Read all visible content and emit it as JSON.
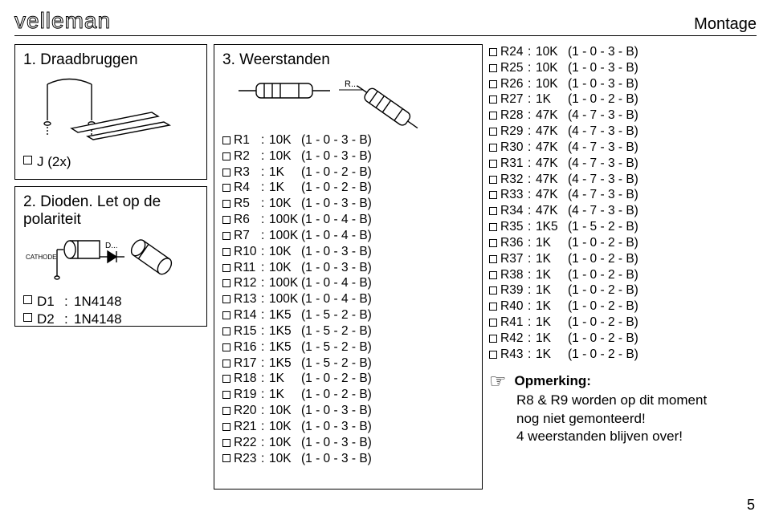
{
  "header": {
    "brand": "velleman",
    "pageTitleRight": "Montage"
  },
  "pageNumber": "5",
  "sec1": {
    "title": "1. Draadbruggen",
    "jumper_label": "J (2x)"
  },
  "sec2": {
    "title": "2. Dioden. Let op de polariteit",
    "cathode_label": "CATHODE",
    "dlabel": "D...",
    "items": [
      {
        "ref": "D1",
        "val": "1N4148"
      },
      {
        "ref": "D2",
        "val": "1N4148"
      }
    ]
  },
  "sec3": {
    "title": "3. Weerstanden",
    "rlabel": "R...",
    "rowsA": [
      {
        "r": "R1",
        "v": "10K",
        "c": "(1 - 0 - 3 - B)"
      },
      {
        "r": "R2",
        "v": "10K",
        "c": "(1 - 0 - 3 - B)"
      },
      {
        "r": "R3",
        "v": "1K",
        "c": "(1 - 0 - 2 - B)"
      },
      {
        "r": "R4",
        "v": "1K",
        "c": "(1 - 0 - 2 - B)"
      },
      {
        "r": "R5",
        "v": "10K",
        "c": "(1 - 0 - 3 - B)"
      },
      {
        "r": "R6",
        "v": "100K",
        "c": "(1 - 0 - 4 - B)"
      },
      {
        "r": "R7",
        "v": "100K",
        "c": "(1 - 0 - 4 - B)"
      },
      {
        "r": "R10",
        "v": "10K",
        "c": "(1 - 0 - 3 - B)"
      },
      {
        "r": "R11",
        "v": "10K",
        "c": "(1 - 0 - 3 - B)"
      },
      {
        "r": "R12",
        "v": "100K",
        "c": "(1 - 0 - 4 - B)"
      },
      {
        "r": "R13",
        "v": "100K",
        "c": "(1 - 0 - 4 - B)"
      },
      {
        "r": "R14",
        "v": "1K5",
        "c": "(1 - 5 - 2 - B)"
      },
      {
        "r": "R15",
        "v": "1K5",
        "c": "(1 - 5 - 2 - B)"
      },
      {
        "r": "R16",
        "v": "1K5",
        "c": "(1 - 5 - 2 - B)"
      },
      {
        "r": "R17",
        "v": "1K5",
        "c": "(1 - 5 - 2 - B)"
      },
      {
        "r": "R18",
        "v": "1K",
        "c": "(1 - 0 - 2 - B)"
      },
      {
        "r": "R19",
        "v": "1K",
        "c": "(1 - 0 - 2 - B)"
      },
      {
        "r": "R20",
        "v": "10K",
        "c": "(1 - 0 - 3 - B)"
      },
      {
        "r": "R21",
        "v": "10K",
        "c": "(1 - 0 - 3 - B)"
      },
      {
        "r": "R22",
        "v": "10K",
        "c": "(1 - 0 - 3 - B)"
      },
      {
        "r": "R23",
        "v": "10K",
        "c": "(1 - 0 - 3 - B)"
      }
    ],
    "rowsB": [
      {
        "r": "R24",
        "v": "10K",
        "c": "(1 - 0 - 3 - B)"
      },
      {
        "r": "R25",
        "v": "10K",
        "c": "(1 - 0 - 3 - B)"
      },
      {
        "r": "R26",
        "v": "10K",
        "c": "(1 - 0 - 3 - B)"
      },
      {
        "r": "R27",
        "v": "1K",
        "c": "(1 - 0 - 2 - B)"
      },
      {
        "r": "R28",
        "v": "47K",
        "c": "(4 - 7 - 3 - B)"
      },
      {
        "r": "R29",
        "v": "47K",
        "c": "(4 - 7 - 3 - B)"
      },
      {
        "r": "R30",
        "v": "47K",
        "c": "(4 - 7 - 3 - B)"
      },
      {
        "r": "R31",
        "v": "47K",
        "c": "(4 - 7 - 3 - B)"
      },
      {
        "r": "R32",
        "v": "47K",
        "c": "(4 - 7 - 3 - B)"
      },
      {
        "r": "R33",
        "v": "47K",
        "c": "(4 - 7 - 3 - B)"
      },
      {
        "r": "R34",
        "v": "47K",
        "c": "(4 - 7 - 3 - B)"
      },
      {
        "r": "R35",
        "v": "1K5",
        "c": "(1 - 5 - 2 - B)"
      },
      {
        "r": "R36",
        "v": "1K",
        "c": "(1 - 0 - 2 - B)"
      },
      {
        "r": "R37",
        "v": "1K",
        "c": "(1 - 0 - 2 - B)"
      },
      {
        "r": "R38",
        "v": "1K",
        "c": "(1 - 0 - 2 - B)"
      },
      {
        "r": "R39",
        "v": "1K",
        "c": "(1 - 0 - 2 - B)"
      },
      {
        "r": "R40",
        "v": "1K",
        "c": "(1 - 0 - 2 - B)"
      },
      {
        "r": "R41",
        "v": "1K",
        "c": "(1 - 0 - 2 - B)"
      },
      {
        "r": "R42",
        "v": "1K",
        "c": "(1 - 0 - 2 - B)"
      },
      {
        "r": "R43",
        "v": "1K",
        "c": "(1 - 0 - 2 - B)"
      }
    ]
  },
  "note": {
    "title": "Opmerking:",
    "line1": "R8 & R9 worden op dit moment",
    "line2": "nog niet gemonteerd!",
    "line3": "4 weerstanden blijven over!"
  }
}
